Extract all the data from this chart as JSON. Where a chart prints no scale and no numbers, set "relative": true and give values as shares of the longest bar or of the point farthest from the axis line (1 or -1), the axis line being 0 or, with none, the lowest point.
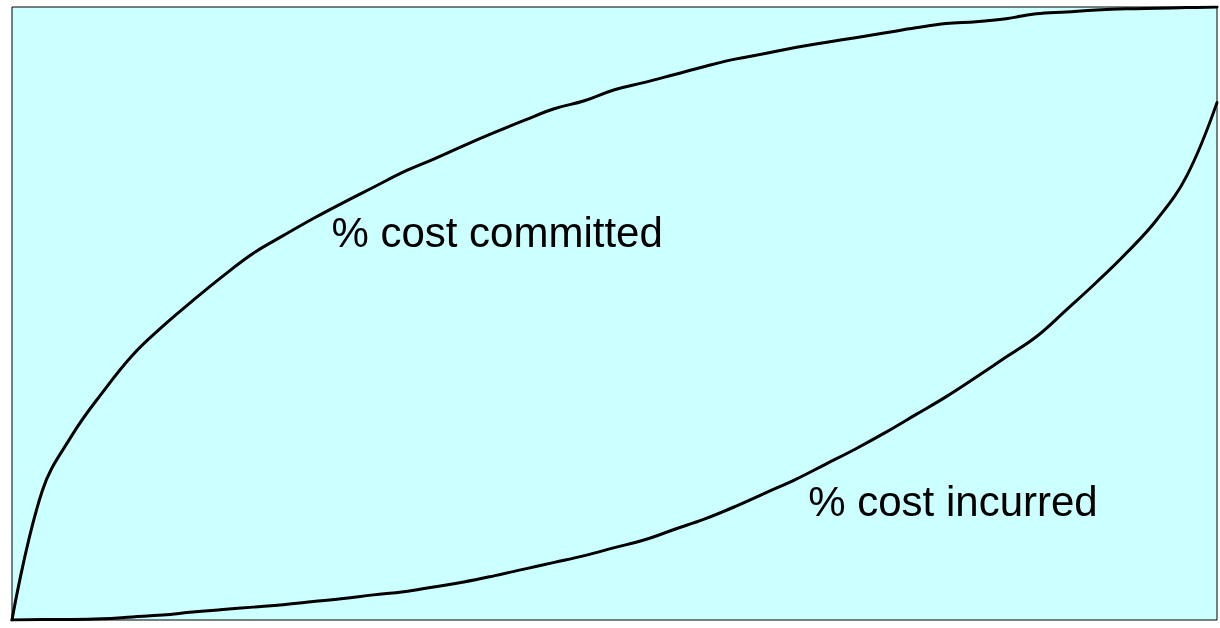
{
  "chart_data": {
    "type": "line",
    "relative": true,
    "line_style": "solid",
    "categories": [
      null,
      null,
      null,
      null,
      null,
      null,
      null,
      null,
      null,
      null,
      null,
      null,
      null,
      null,
      null,
      null,
      null,
      null,
      null,
      null,
      null,
      null,
      null,
      null,
      null,
      null,
      null,
      null,
      null,
      null,
      null,
      null,
      null,
      null,
      null,
      null,
      null,
      null,
      null,
      null,
      null
    ],
    "series": [
      {
        "name": "% cost committed",
        "color": "#000000",
        "values": [
          0,
          0.21,
          0.302,
          0.371,
          0.432,
          0.479,
          0.521,
          0.561,
          0.598,
          0.627,
          0.655,
          0.681,
          0.706,
          0.731,
          0.752,
          0.774,
          0.795,
          0.815,
          0.834,
          0.847,
          0.865,
          0.877,
          0.89,
          0.903,
          0.915,
          0.924,
          0.934,
          0.942,
          0.95,
          0.958,
          0.966,
          0.973,
          0.976,
          0.981,
          0.989,
          0.992,
          0.995,
          0.997,
          0.998,
          0.999,
          1
        ]
      },
      {
        "name": "% cost incurred",
        "color": "#000000",
        "values": [
          0,
          0.001,
          0.001,
          0.002,
          0.005,
          0.008,
          0.013,
          0.017,
          0.021,
          0.025,
          0.03,
          0.035,
          0.041,
          0.046,
          0.054,
          0.062,
          0.072,
          0.083,
          0.094,
          0.105,
          0.118,
          0.131,
          0.148,
          0.165,
          0.185,
          0.207,
          0.229,
          0.254,
          0.279,
          0.306,
          0.335,
          0.364,
          0.396,
          0.429,
          0.462,
          0.506,
          0.551,
          0.599,
          0.653,
          0.725,
          0.844
        ]
      }
    ]
  }
}
